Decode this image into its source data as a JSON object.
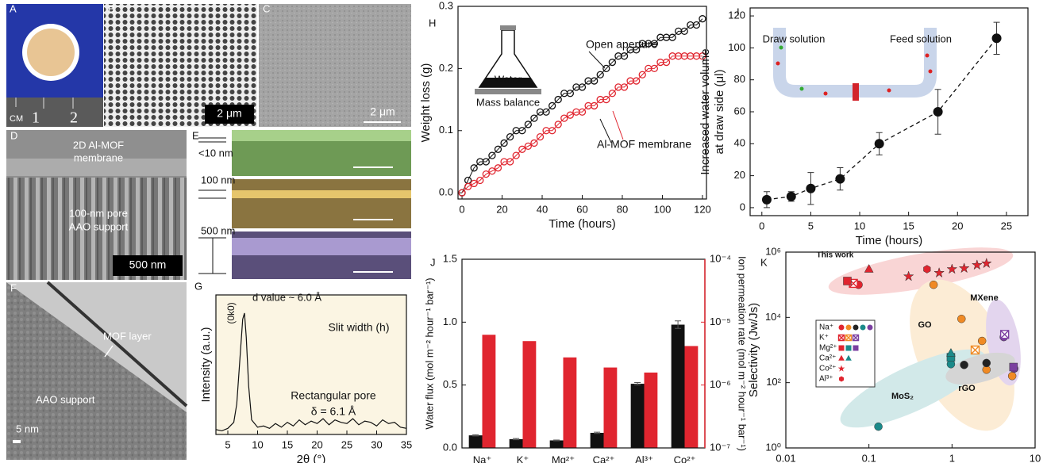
{
  "panels": {
    "A": {
      "letter": "A",
      "ruler_unit": "CM",
      "ruler_marks": [
        "1",
        "2"
      ]
    },
    "B": {
      "letter": "B",
      "scale_bar": "2 μm"
    },
    "C": {
      "letter": "C",
      "scale_bar": "2 μm"
    },
    "D": {
      "letter": "D",
      "labels": [
        "2D Al-MOF",
        "membrane",
        "100-nm pore",
        "AAO support"
      ],
      "scale_bar": "500 nm"
    },
    "E": {
      "letter": "E",
      "thickness": [
        "<10 nm",
        "100 nm",
        "500 nm"
      ]
    },
    "F": {
      "letter": "F",
      "labels": [
        "MOF layer",
        "AAO support"
      ],
      "scale_bar": "5 nm"
    }
  },
  "chart_data": [
    {
      "type": "line",
      "panel": "G",
      "xlabel": "2θ (°)",
      "ylabel": "Intensity (a.u.)",
      "color": "#111111",
      "x": [
        3,
        4,
        5,
        6,
        6.5,
        7,
        7.5,
        7.8,
        8.1,
        8.5,
        9,
        10,
        11,
        12,
        13,
        14,
        15,
        16,
        17,
        18,
        19,
        20,
        21,
        22,
        23,
        24,
        25,
        26,
        27,
        28,
        29,
        30,
        31,
        32,
        33,
        34,
        35
      ],
      "values": [
        0.04,
        0.03,
        0.05,
        0.1,
        0.25,
        0.6,
        0.95,
        1.0,
        0.8,
        0.4,
        0.12,
        0.06,
        0.07,
        0.05,
        0.09,
        0.06,
        0.1,
        0.07,
        0.12,
        0.08,
        0.11,
        0.09,
        0.13,
        0.08,
        0.12,
        0.1,
        0.09,
        0.13,
        0.08,
        0.11,
        0.1,
        0.07,
        0.12,
        0.09,
        0.1,
        0.06,
        0.05
      ],
      "xlim": [
        3,
        35
      ],
      "ylim": [
        0,
        1.15
      ],
      "xticks": [
        5,
        10,
        15,
        20,
        25,
        30,
        35
      ],
      "annotations": [
        "(0k0)",
        "d value ~ 6.0 Å",
        "Slit width (h)",
        "Rectangular pore",
        "δ = 6.1 Å"
      ]
    },
    {
      "type": "line",
      "panel": "H",
      "xlabel": "Time (hours)",
      "ylabel": "Weight loss (g)",
      "marker": "open-circle",
      "x": [
        0,
        3,
        6,
        9,
        12,
        15,
        18,
        21,
        24,
        27,
        30,
        33,
        36,
        39,
        42,
        45,
        48,
        51,
        54,
        57,
        60,
        63,
        66,
        69,
        72,
        75,
        78,
        81,
        84,
        87,
        90,
        93,
        96,
        99,
        102,
        105,
        108,
        111,
        114,
        117,
        120
      ],
      "series": [
        {
          "name": "Open aperture",
          "color": "#111111",
          "values": [
            0,
            0.02,
            0.04,
            0.05,
            0.05,
            0.06,
            0.07,
            0.08,
            0.09,
            0.1,
            0.1,
            0.11,
            0.12,
            0.13,
            0.13,
            0.14,
            0.15,
            0.16,
            0.16,
            0.17,
            0.17,
            0.18,
            0.18,
            0.19,
            0.2,
            0.21,
            0.22,
            0.22,
            0.23,
            0.23,
            0.24,
            0.24,
            0.24,
            0.25,
            0.25,
            0.25,
            0.26,
            0.26,
            0.27,
            0.27,
            0.28
          ]
        },
        {
          "name": "Al-MOF membrane",
          "color": "#e0252f",
          "values": [
            0,
            0.01,
            0.015,
            0.02,
            0.03,
            0.035,
            0.04,
            0.05,
            0.05,
            0.06,
            0.07,
            0.075,
            0.08,
            0.09,
            0.1,
            0.1,
            0.11,
            0.12,
            0.125,
            0.13,
            0.13,
            0.14,
            0.14,
            0.15,
            0.15,
            0.16,
            0.17,
            0.17,
            0.18,
            0.18,
            0.19,
            0.2,
            0.2,
            0.21,
            0.21,
            0.22,
            0.22,
            0.22,
            0.22,
            0.22,
            0.22
          ]
        }
      ],
      "xlim": [
        -2,
        122
      ],
      "ylim": [
        -0.01,
        0.3
      ],
      "xticks": [
        0,
        20,
        40,
        60,
        80,
        100,
        120
      ],
      "yticks": [
        {
          "value": 0,
          "label": "0.0"
        },
        {
          "value": 0.1,
          "label": "0.1"
        },
        {
          "value": 0.2,
          "label": "0.2"
        },
        {
          "value": 0.3,
          "label": "0.3"
        }
      ],
      "annotations": [
        "Water",
        "Mass balance"
      ]
    },
    {
      "type": "scatter",
      "panel": "I",
      "xlabel": "Time (hours)",
      "ylabel": [
        "Increased water volume",
        "at draw side (μl)"
      ],
      "color": "#111111",
      "line_style": "dashed",
      "x": [
        0.5,
        3,
        5,
        8,
        12,
        18,
        24
      ],
      "values": [
        5,
        7,
        12,
        18,
        40,
        60,
        106
      ],
      "errors": [
        5,
        3,
        10,
        7,
        7,
        14,
        10
      ],
      "xlim": [
        -1.2,
        27.2
      ],
      "ylim": [
        -5,
        125
      ],
      "xticks": [
        0,
        5,
        10,
        15,
        20,
        25
      ],
      "yticks": [
        0,
        20,
        40,
        60,
        80,
        100,
        120
      ],
      "annotations": [
        "Draw solution",
        "Feed solution"
      ]
    },
    {
      "type": "bar",
      "panel": "J",
      "ylabel": "Water flux (mol m⁻² hour⁻¹ bar⁻¹)",
      "y2label": "Ion permeation rate (mol m⁻² hour⁻¹ bar⁻¹)",
      "categories": [
        "Na⁺",
        "K⁺",
        "Mg²⁺",
        "Ca²⁺",
        "Al³⁺",
        "Co²⁺"
      ],
      "series": [
        {
          "color": "#111111",
          "values": [
            0.1,
            0.07,
            0.06,
            0.12,
            0.51,
            0.98
          ],
          "errors": [
            0.005,
            0.005,
            0.003,
            0.005,
            0.01,
            0.03
          ]
        },
        {
          "color": "#e0252f",
          "axis": "y2",
          "values": [
            6.3e-06,
            5e-06,
            2.75e-06,
            1.9e-06,
            1.58e-06,
            4.17e-06
          ]
        }
      ],
      "ylim": [
        0,
        1.5
      ],
      "yticks": [
        {
          "value": 0,
          "label": "0.0"
        },
        {
          "value": 0.5,
          "label": "0.5"
        },
        {
          "value": 1,
          "label": "1.0"
        },
        {
          "value": 1.5,
          "label": "1.5"
        }
      ],
      "y2lim": [
        1e-07,
        0.0001
      ],
      "y2log": true,
      "y2color": "#e0252f",
      "y2ticks": [
        {
          "value": 1e-07,
          "label": "10⁻⁷"
        },
        {
          "value": 1e-06,
          "label": "10⁻⁶"
        },
        {
          "value": 1e-05,
          "label": "10⁻⁵"
        },
        {
          "value": 0.0001,
          "label": "10⁻⁴"
        }
      ]
    },
    {
      "type": "scatter",
      "panel": "K",
      "xlabel": "Water flux (mol m⁻² hour⁻¹ bar⁻¹)",
      "ylabel": "Selectivity (Jw/Js)",
      "xlog": true,
      "ylog": true,
      "series": [
        {
          "name": "Na⁺",
          "marker": "circle",
          "x": [
            0.075,
            0.6,
            1.3,
            2.3,
            2.6,
            5.3,
            1.4,
            2.6,
            0.13,
            0.97,
            4.2,
            5.6
          ],
          "values": [
            100000,
            100000,
            9000,
            1900,
            250,
            160,
            350,
            400,
            4.5,
            370,
            2500,
            270
          ],
          "colors": [
            "#e0252f",
            "#f08a24",
            "#f08a24",
            "#f08a24",
            "#f08a24",
            "#f08a24",
            "#222222",
            "#222222",
            "#1b8a8a",
            "#1b8a8a",
            "#7b3fa0",
            "#7b3fa0"
          ]
        },
        {
          "name": "K⁺",
          "marker": "boxed-x",
          "x": [
            0.065,
            1.9,
            4.3
          ],
          "values": [
            110000,
            1000,
            3000
          ],
          "colors": [
            "#e0252f",
            "#f08a24",
            "#7b3fa0"
          ]
        },
        {
          "name": "Mg²⁺",
          "marker": "square",
          "x": [
            0.055,
            0.97,
            5.5
          ],
          "values": [
            130000,
            600,
            300
          ],
          "colors": [
            "#e0252f",
            "#1b8a8a",
            "#7b3fa0"
          ]
        },
        {
          "name": "Ca²⁺",
          "marker": "triangle",
          "x": [
            0.1,
            0.97
          ],
          "values": [
            300000,
            800
          ],
          "colors": [
            "#e0252f",
            "#1b8a8a"
          ]
        },
        {
          "name": "Co²⁺",
          "marker": "star",
          "x": [
            0.3,
            0.7,
            1.0,
            1.4,
            2.0,
            2.6
          ],
          "values": [
            180000,
            230000,
            300000,
            320000,
            400000,
            450000
          ],
          "colors": [
            "#e0252f",
            "#e0252f",
            "#e0252f",
            "#e0252f",
            "#e0252f",
            "#e0252f"
          ]
        },
        {
          "name": "Al³⁺",
          "marker": "hexagon",
          "x": [
            0.5
          ],
          "values": [
            300000
          ],
          "colors": [
            "#e0252f"
          ]
        }
      ],
      "xlim": [
        0.01,
        10
      ],
      "ylim": [
        1,
        1000000
      ],
      "xticks": [
        0.01,
        0.1,
        1,
        10
      ],
      "yticks": [
        {
          "value": 1,
          "label": "10⁰"
        },
        {
          "value": 100,
          "label": "10²"
        },
        {
          "value": 10000,
          "label": "10⁴"
        },
        {
          "value": 1000000,
          "label": "10⁶"
        }
      ],
      "annotations": [
        "This work",
        "GO",
        "MXene",
        "rGO",
        "MoS₂"
      ]
    }
  ]
}
